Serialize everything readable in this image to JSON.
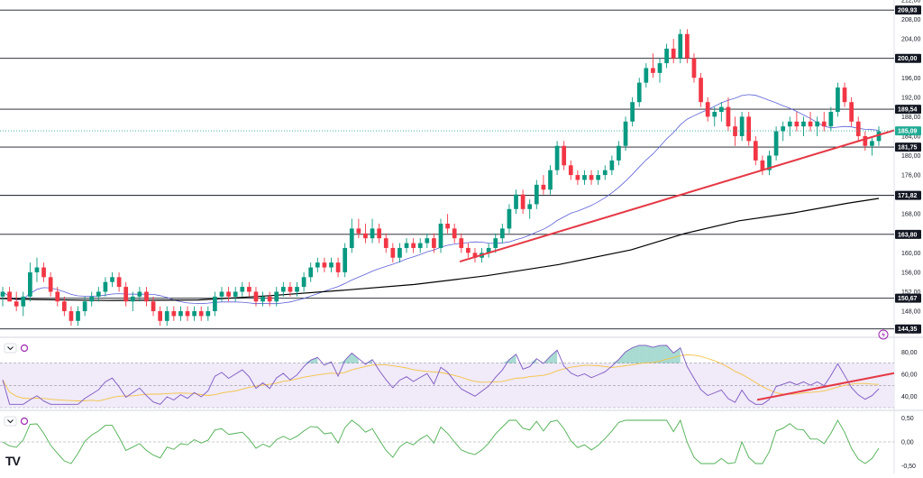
{
  "chart_data": [
    {
      "type": "candlestick",
      "pane": "price",
      "y_ticks": [
        "212,00",
        "208,00",
        "204,00",
        "200,00",
        "196,00",
        "192,00",
        "188,00",
        "184,00",
        "180,00",
        "176,00",
        "172,00",
        "168,00",
        "164,00",
        "160,00",
        "156,00",
        "152,00",
        "148,00",
        "144,00"
      ],
      "ylim": [
        143,
        212
      ],
      "current_price": "185,09",
      "levels": [
        "209,93",
        "200,00",
        "189,54",
        "181,75",
        "171,82",
        "163,80",
        "150,67",
        "144,35"
      ],
      "colors": {
        "up": "#089981",
        "down": "#f23645",
        "ma_fast": "#5b5fd6",
        "ma_slow": "#000000",
        "trendline": "#e53945",
        "level_line": "#131722",
        "current": "#22ab94"
      },
      "candles": [
        [
          151,
          153,
          149,
          152
        ],
        [
          152,
          153,
          150,
          150
        ],
        [
          150,
          152,
          148,
          149
        ],
        [
          149,
          152,
          147,
          151
        ],
        [
          151,
          158,
          150,
          156
        ],
        [
          156,
          159,
          154,
          157
        ],
        [
          157,
          158,
          154,
          155
        ],
        [
          155,
          156,
          151,
          152
        ],
        [
          152,
          153,
          149,
          150
        ],
        [
          150,
          151,
          147,
          148
        ],
        [
          148,
          149,
          145,
          146
        ],
        [
          146,
          149,
          145,
          148
        ],
        [
          148,
          151,
          147,
          150
        ],
        [
          150,
          152,
          149,
          151
        ],
        [
          151,
          153,
          150,
          152
        ],
        [
          152,
          155,
          151,
          154
        ],
        [
          154,
          156,
          153,
          155
        ],
        [
          155,
          156,
          152,
          153
        ],
        [
          153,
          154,
          149,
          150
        ],
        [
          150,
          152,
          148,
          151
        ],
        [
          151,
          153,
          150,
          152
        ],
        [
          152,
          153,
          149,
          150
        ],
        [
          150,
          151,
          147,
          148
        ],
        [
          148,
          149,
          145,
          146
        ],
        [
          146,
          149,
          145,
          148
        ],
        [
          148,
          149,
          146,
          147
        ],
        [
          147,
          149,
          146,
          148
        ],
        [
          148,
          149,
          146,
          147
        ],
        [
          147,
          149,
          146,
          148
        ],
        [
          148,
          149,
          146,
          147
        ],
        [
          147,
          149,
          146,
          148
        ],
        [
          148,
          152,
          147,
          151
        ],
        [
          151,
          153,
          150,
          152
        ],
        [
          152,
          153,
          150,
          151
        ],
        [
          151,
          153,
          150,
          152
        ],
        [
          152,
          154,
          151,
          153
        ],
        [
          153,
          154,
          151,
          152
        ],
        [
          152,
          153,
          149,
          150
        ],
        [
          150,
          152,
          149,
          151
        ],
        [
          151,
          152,
          149,
          150
        ],
        [
          150,
          153,
          149,
          152
        ],
        [
          152,
          154,
          151,
          153
        ],
        [
          153,
          154,
          151,
          152
        ],
        [
          152,
          154,
          151,
          153
        ],
        [
          153,
          156,
          152,
          155
        ],
        [
          155,
          158,
          154,
          157
        ],
        [
          157,
          159,
          156,
          158
        ],
        [
          158,
          159,
          156,
          157
        ],
        [
          157,
          159,
          156,
          158
        ],
        [
          158,
          159,
          155,
          156
        ],
        [
          156,
          162,
          155,
          161
        ],
        [
          161,
          167,
          160,
          165
        ],
        [
          165,
          167,
          163,
          164
        ],
        [
          164,
          166,
          162,
          163
        ],
        [
          163,
          167,
          162,
          165
        ],
        [
          165,
          166,
          162,
          163
        ],
        [
          163,
          164,
          160,
          161
        ],
        [
          161,
          162,
          158,
          159
        ],
        [
          159,
          162,
          158,
          161
        ],
        [
          161,
          163,
          160,
          162
        ],
        [
          162,
          163,
          160,
          161
        ],
        [
          161,
          163,
          160,
          162
        ],
        [
          162,
          164,
          161,
          163
        ],
        [
          163,
          164,
          160,
          161
        ],
        [
          161,
          167,
          160,
          166
        ],
        [
          166,
          168,
          164,
          165
        ],
        [
          165,
          166,
          162,
          163
        ],
        [
          163,
          164,
          160,
          161
        ],
        [
          161,
          162,
          159,
          160
        ],
        [
          160,
          161,
          158,
          159
        ],
        [
          159,
          161,
          158,
          160
        ],
        [
          160,
          162,
          159,
          161
        ],
        [
          161,
          164,
          160,
          163
        ],
        [
          163,
          166,
          162,
          165
        ],
        [
          165,
          170,
          164,
          169
        ],
        [
          169,
          173,
          168,
          172
        ],
        [
          172,
          173,
          168,
          169
        ],
        [
          169,
          171,
          167,
          170
        ],
        [
          170,
          175,
          169,
          174
        ],
        [
          174,
          176,
          172,
          173
        ],
        [
          173,
          178,
          172,
          177
        ],
        [
          177,
          183,
          176,
          182
        ],
        [
          182,
          183,
          177,
          178
        ],
        [
          178,
          179,
          175,
          176
        ],
        [
          176,
          177,
          174,
          175
        ],
        [
          175,
          177,
          174,
          176
        ],
        [
          176,
          177,
          174,
          175
        ],
        [
          175,
          177,
          174,
          176
        ],
        [
          176,
          178,
          175,
          177
        ],
        [
          177,
          180,
          176,
          179
        ],
        [
          179,
          183,
          178,
          182
        ],
        [
          182,
          188,
          181,
          187
        ],
        [
          187,
          192,
          186,
          191
        ],
        [
          191,
          196,
          190,
          195
        ],
        [
          195,
          199,
          194,
          198
        ],
        [
          198,
          201,
          196,
          197
        ],
        [
          197,
          200,
          195,
          199
        ],
        [
          199,
          203,
          198,
          202
        ],
        [
          202,
          204,
          199,
          200
        ],
        [
          200,
          206,
          199,
          205
        ],
        [
          205,
          206,
          199,
          200
        ],
        [
          200,
          201,
          195,
          196
        ],
        [
          196,
          197,
          190,
          191
        ],
        [
          191,
          192,
          187,
          188
        ],
        [
          188,
          190,
          186,
          189
        ],
        [
          189,
          191,
          187,
          190
        ],
        [
          190,
          192,
          185,
          186
        ],
        [
          186,
          188,
          182,
          184
        ],
        [
          184,
          189,
          183,
          188
        ],
        [
          188,
          189,
          182,
          183
        ],
        [
          183,
          184,
          178,
          179
        ],
        [
          179,
          180,
          176,
          177
        ],
        [
          177,
          181,
          176,
          180
        ],
        [
          180,
          186,
          179,
          185
        ],
        [
          185,
          187,
          183,
          186
        ],
        [
          186,
          188,
          184,
          187
        ],
        [
          187,
          189,
          185,
          186
        ],
        [
          186,
          188,
          184,
          187
        ],
        [
          187,
          189,
          185,
          186
        ],
        [
          186,
          188,
          184,
          187
        ],
        [
          187,
          189,
          185,
          186
        ],
        [
          186,
          190,
          185,
          189
        ],
        [
          189,
          195,
          188,
          194
        ],
        [
          194,
          195,
          190,
          191
        ],
        [
          191,
          192,
          186,
          187
        ],
        [
          187,
          188,
          183,
          184
        ],
        [
          184,
          185,
          181,
          182
        ],
        [
          182,
          184,
          180,
          183
        ],
        [
          183,
          186,
          182,
          185
        ]
      ]
    },
    {
      "type": "line",
      "pane": "rsi",
      "y_ticks": [
        "80,00",
        "60,00",
        "40,00"
      ],
      "ylim": [
        30,
        90
      ],
      "band": [
        30,
        70
      ],
      "colors": {
        "rsi": "#7e57c2",
        "signal": "#f5c242",
        "band": "#f0eaf9",
        "trendline": "#e53945",
        "overbought": "#089981"
      }
    },
    {
      "type": "line",
      "pane": "oscillator",
      "y_ticks": [
        "0,50",
        "0,00",
        "-0,50"
      ],
      "ylim": [
        -0.6,
        0.6
      ],
      "colors": {
        "line": "#4caf50"
      }
    }
  ],
  "branding": {
    "logo": "TV"
  }
}
